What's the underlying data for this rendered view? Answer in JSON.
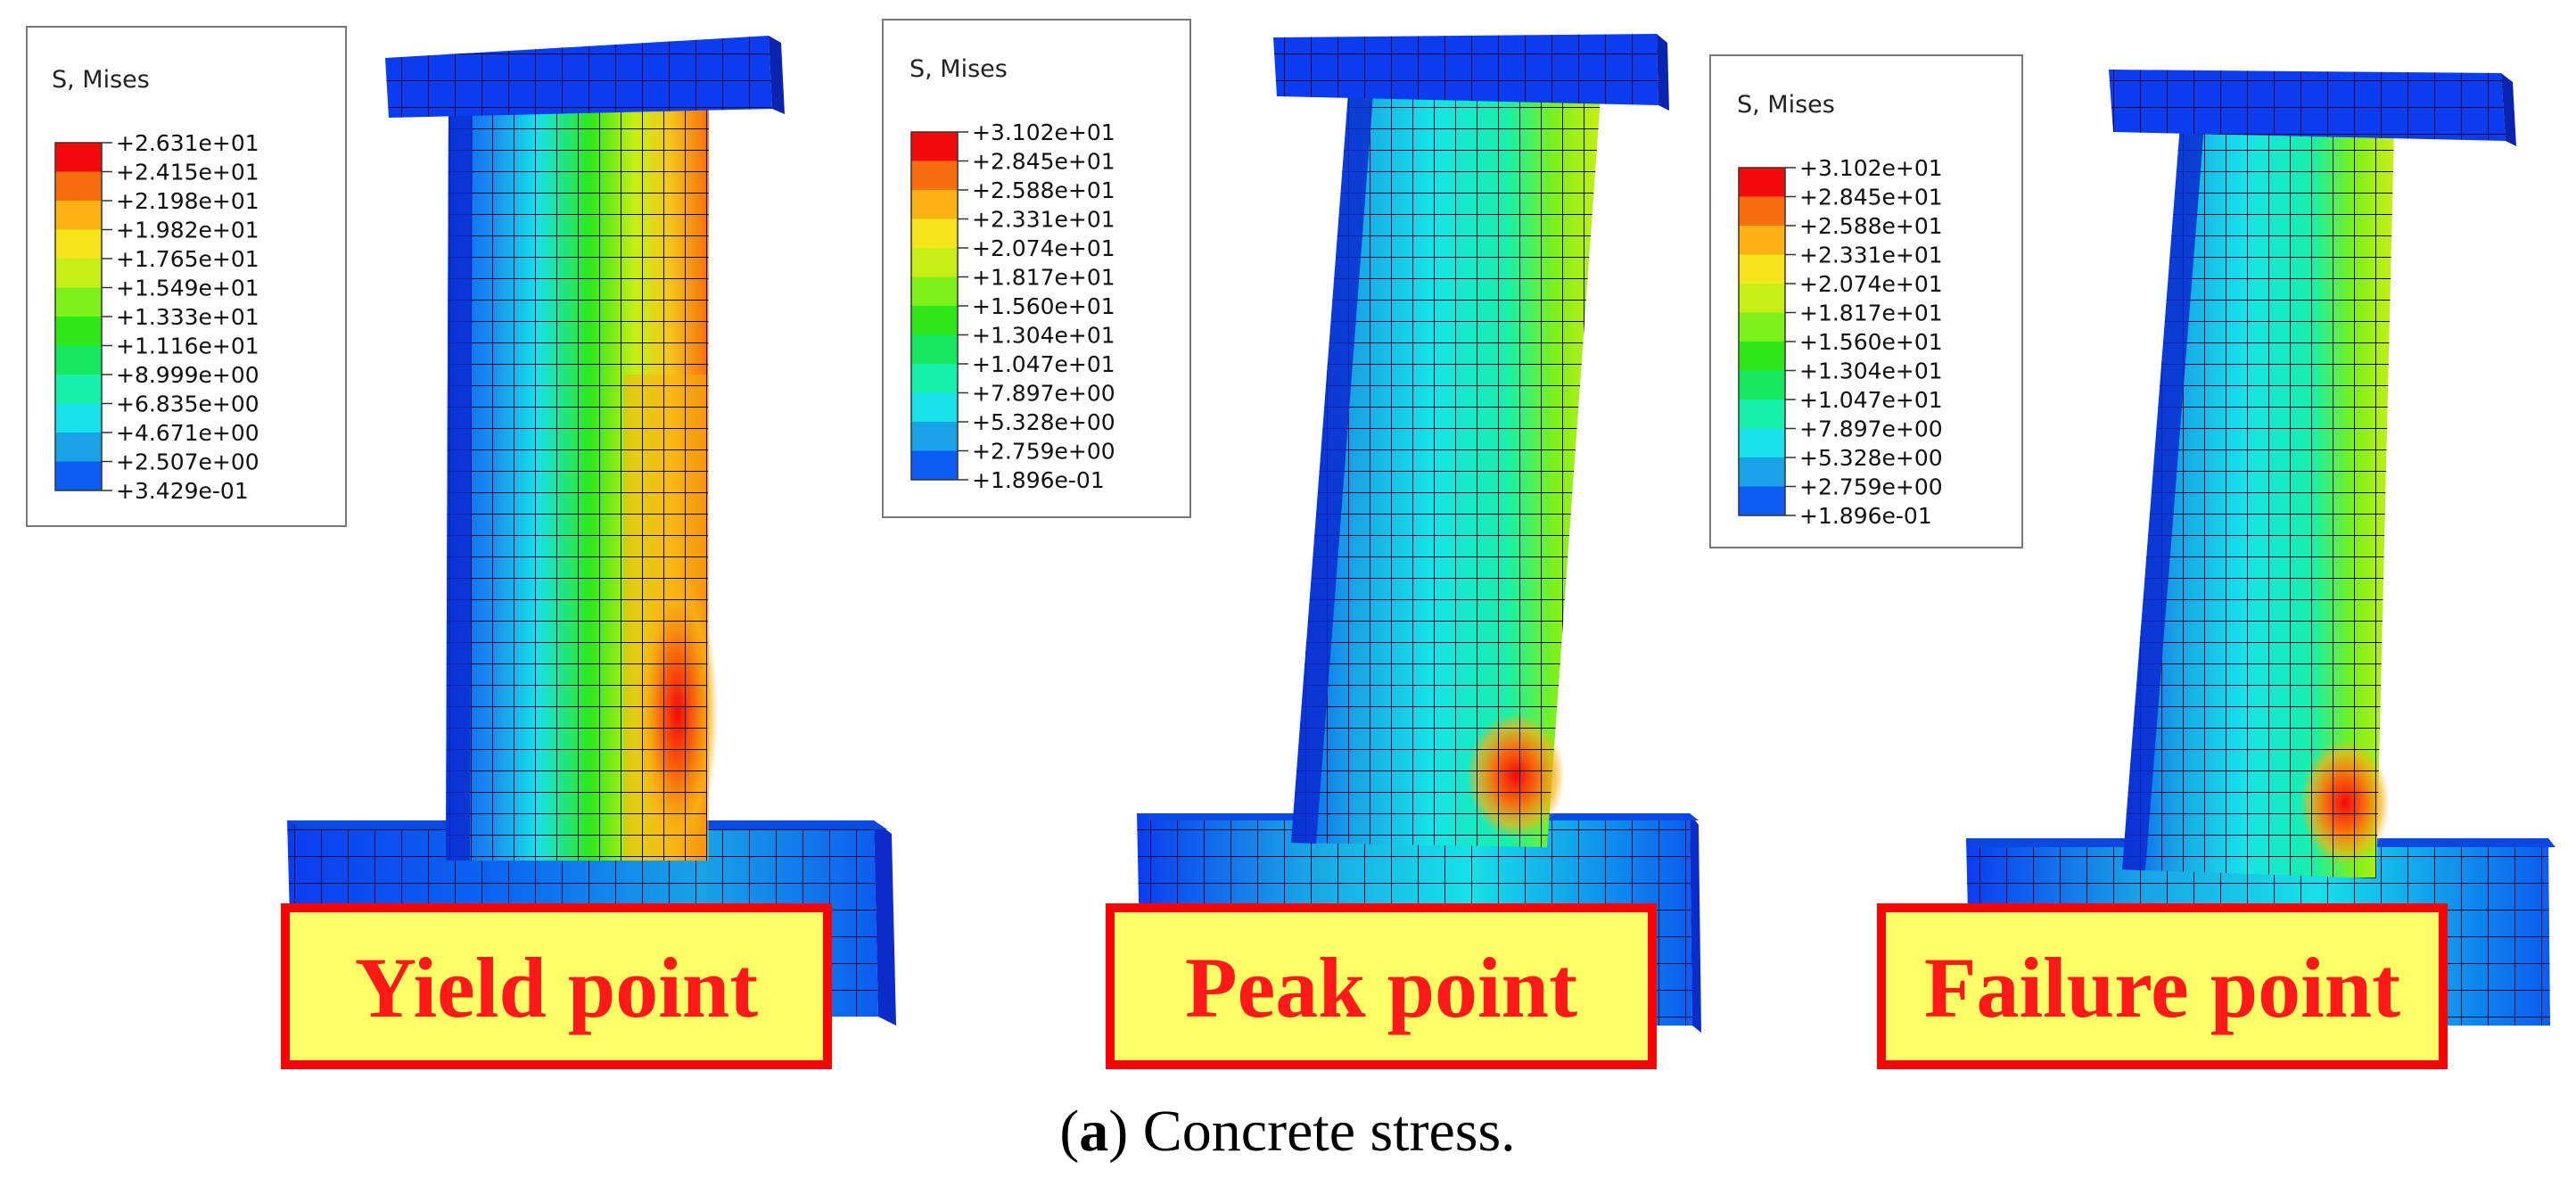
{
  "colors": {
    "stress_scale": [
      "#0000ff",
      "#0b5cf0",
      "#19a3e6",
      "#16e2e8",
      "#17f0a8",
      "#17e85e",
      "#2ee81a",
      "#7cf01a",
      "#c8ef15",
      "#f5e51a",
      "#f9b113",
      "#f66e0d",
      "#f40a0a"
    ],
    "label_box_fill": "#ffff66",
    "label_box_border": "#ff0000",
    "label_text": "#ff1a1a"
  },
  "panels": [
    {
      "id": "yield",
      "label": "Yield point",
      "legend": {
        "title": "S, Mises",
        "values": [
          "+2.631e+01",
          "+2.415e+01",
          "+2.198e+01",
          "+1.982e+01",
          "+1.765e+01",
          "+1.549e+01",
          "+1.333e+01",
          "+1.116e+01",
          "+8.999e+00",
          "+6.835e+00",
          "+4.671e+00",
          "+2.507e+00",
          "+3.429e-01"
        ]
      }
    },
    {
      "id": "peak",
      "label": "Peak point",
      "legend": {
        "title": "S, Mises",
        "values": [
          "+3.102e+01",
          "+2.845e+01",
          "+2.588e+01",
          "+2.331e+01",
          "+2.074e+01",
          "+1.817e+01",
          "+1.560e+01",
          "+1.304e+01",
          "+1.047e+01",
          "+7.897e+00",
          "+5.328e+00",
          "+2.759e+00",
          "+1.896e-01"
        ]
      }
    },
    {
      "id": "failure",
      "label": "Failure point",
      "legend": {
        "title": "S, Mises",
        "values": [
          "+3.102e+01",
          "+2.845e+01",
          "+2.588e+01",
          "+2.331e+01",
          "+2.074e+01",
          "+1.817e+01",
          "+1.560e+01",
          "+1.304e+01",
          "+1.047e+01",
          "+7.897e+00",
          "+5.328e+00",
          "+2.759e+00",
          "+1.896e-01"
        ]
      }
    }
  ],
  "caption": {
    "letter": "a",
    "open": "(",
    "close": ")",
    "text": " Concrete stress."
  }
}
